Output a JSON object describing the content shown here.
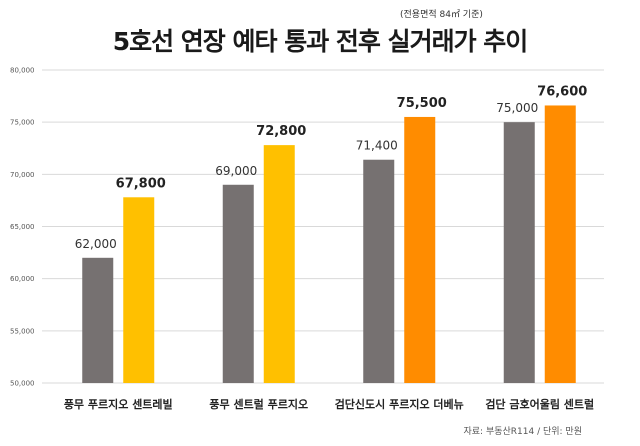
{
  "chart_data": {
    "type": "bar",
    "title": "5호선 연장 예타 통과 전후 실거래가 추이",
    "subtitle": "(전용면적 84㎡ 기준)",
    "categories": [
      "풍무 푸르지오 센트레빌",
      "풍무 센트럴 푸르지오",
      "검단신도시 푸르지오 더베뉴",
      "검단 금호어울림 센트럴"
    ],
    "series": [
      {
        "values": [
          62000,
          69000,
          71400,
          75000
        ]
      },
      {
        "values": [
          67800,
          72800,
          75500,
          76600
        ]
      }
    ],
    "value_labels": [
      [
        "62,000",
        "69,000",
        "71,400",
        "75,000"
      ],
      [
        "67,800",
        "72,800",
        "75,500",
        "76,600"
      ]
    ],
    "ylim": [
      50000,
      80000
    ],
    "yticks": [
      50000,
      55000,
      60000,
      65000,
      70000,
      75000,
      80000
    ],
    "ytick_labels": [
      "50,000",
      "55,000",
      "60,000",
      "65,000",
      "70,000",
      "75,000",
      "80,000"
    ],
    "grid": true,
    "source": "자료: 부동산R114 / 단위: 만원"
  },
  "colors": {
    "before": "#767171",
    "after_pungmu": "#FFC000",
    "after_geomdan": "#FF8C00",
    "grid": "#d9d9d9"
  }
}
